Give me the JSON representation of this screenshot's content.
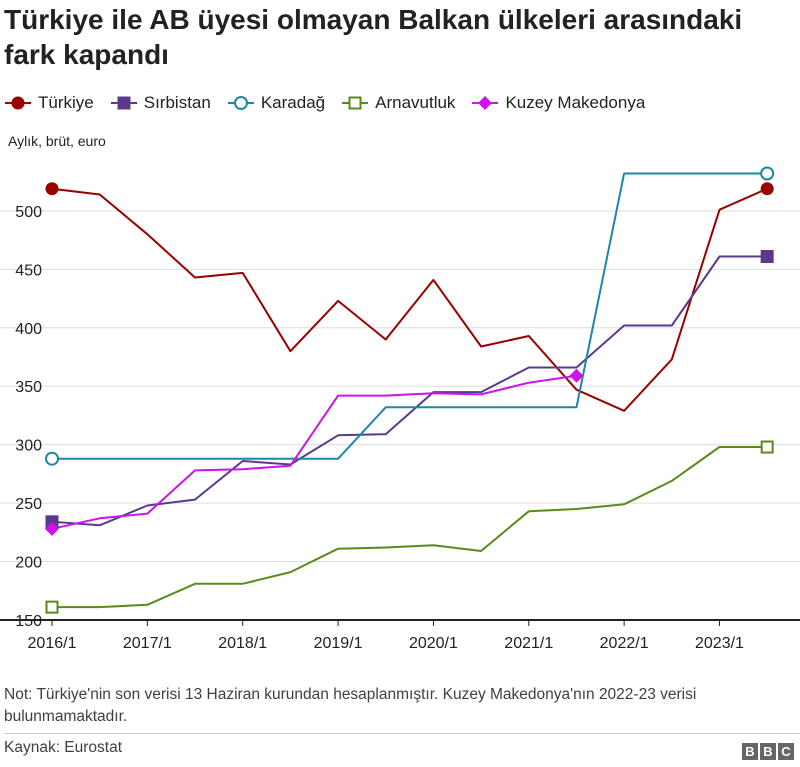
{
  "title": "Türkiye ile AB üyesi olmayan Balkan ülkeleri arasındaki fark kapandı",
  "unit_label": "Aylık, brüt, euro",
  "note": "Not: Türkiye'nin son verisi 13 Haziran kurundan hesaplanmıştır. Kuzey Makedonya'nın 2022-23 verisi bulunmamaktadır.",
  "source": "Kaynak: Eurostat",
  "logo": [
    "B",
    "B",
    "C"
  ],
  "chart_data": {
    "type": "line",
    "title": "Türkiye ile AB üyesi olmayan Balkan ülkeleri arasındaki fark kapandı",
    "ylabel": "Aylık, brüt, euro",
    "xlabel": "",
    "x_ticks": [
      "2016/1",
      "2017/1",
      "2018/1",
      "2019/1",
      "2020/1",
      "2021/1",
      "2022/1",
      "2023/1"
    ],
    "x_range": [
      2016.0,
      2023.75
    ],
    "ylim": [
      150,
      535
    ],
    "y_ticks": [
      150,
      200,
      250,
      300,
      350,
      400,
      450,
      500
    ],
    "grid": "horizontal",
    "legend_position": "top",
    "series": [
      {
        "name": "Türkiye",
        "color": "#990000",
        "marker": "circle",
        "points": [
          [
            2016.0,
            519
          ],
          [
            2016.5,
            514
          ],
          [
            2017.0,
            480
          ],
          [
            2017.5,
            443
          ],
          [
            2018.0,
            447
          ],
          [
            2018.5,
            380
          ],
          [
            2019.0,
            423
          ],
          [
            2019.5,
            390
          ],
          [
            2020.0,
            441
          ],
          [
            2020.5,
            384
          ],
          [
            2021.0,
            393
          ],
          [
            2021.5,
            347
          ],
          [
            2022.0,
            329
          ],
          [
            2022.5,
            373
          ],
          [
            2023.0,
            501
          ],
          [
            2023.5,
            519
          ]
        ]
      },
      {
        "name": "Sırbistan",
        "color": "#5b3a8e",
        "marker": "square",
        "points": [
          [
            2016.0,
            234
          ],
          [
            2016.5,
            231
          ],
          [
            2017.0,
            248
          ],
          [
            2017.5,
            253
          ],
          [
            2018.0,
            286
          ],
          [
            2018.5,
            283
          ],
          [
            2019.0,
            308
          ],
          [
            2019.5,
            309
          ],
          [
            2020.0,
            345
          ],
          [
            2020.5,
            345
          ],
          [
            2021.0,
            366
          ],
          [
            2021.5,
            366
          ],
          [
            2022.0,
            402
          ],
          [
            2022.5,
            402
          ],
          [
            2023.0,
            461
          ],
          [
            2023.5,
            461
          ]
        ]
      },
      {
        "name": "Karadağ",
        "color": "#1d88a3",
        "marker": "circle-open",
        "points": [
          [
            2016.0,
            288
          ],
          [
            2016.5,
            288
          ],
          [
            2017.0,
            288
          ],
          [
            2017.5,
            288
          ],
          [
            2018.0,
            288
          ],
          [
            2018.5,
            288
          ],
          [
            2019.0,
            288
          ],
          [
            2019.5,
            332
          ],
          [
            2020.0,
            332
          ],
          [
            2020.5,
            332
          ],
          [
            2021.0,
            332
          ],
          [
            2021.5,
            332
          ],
          [
            2022.0,
            532
          ],
          [
            2022.5,
            532
          ],
          [
            2023.0,
            532
          ],
          [
            2023.5,
            532
          ]
        ]
      },
      {
        "name": "Arnavutluk",
        "color": "#5a8a1a",
        "marker": "square-open",
        "points": [
          [
            2016.0,
            161
          ],
          [
            2016.5,
            161
          ],
          [
            2017.0,
            163
          ],
          [
            2017.5,
            181
          ],
          [
            2018.0,
            181
          ],
          [
            2018.5,
            191
          ],
          [
            2019.0,
            211
          ],
          [
            2019.5,
            212
          ],
          [
            2020.0,
            214
          ],
          [
            2020.5,
            209
          ],
          [
            2021.0,
            243
          ],
          [
            2021.5,
            245
          ],
          [
            2022.0,
            249
          ],
          [
            2022.5,
            269
          ],
          [
            2023.0,
            298
          ],
          [
            2023.5,
            298
          ]
        ]
      },
      {
        "name": "Kuzey Makedonya",
        "color": "#cc14e8",
        "marker": "diamond",
        "points": [
          [
            2016.0,
            228
          ],
          [
            2016.5,
            237
          ],
          [
            2017.0,
            241
          ],
          [
            2017.5,
            278
          ],
          [
            2018.0,
            279
          ],
          [
            2018.5,
            282
          ],
          [
            2019.0,
            342
          ],
          [
            2019.5,
            342
          ],
          [
            2020.0,
            344
          ],
          [
            2020.5,
            343
          ],
          [
            2021.0,
            353
          ],
          [
            2021.5,
            359
          ]
        ]
      }
    ]
  }
}
